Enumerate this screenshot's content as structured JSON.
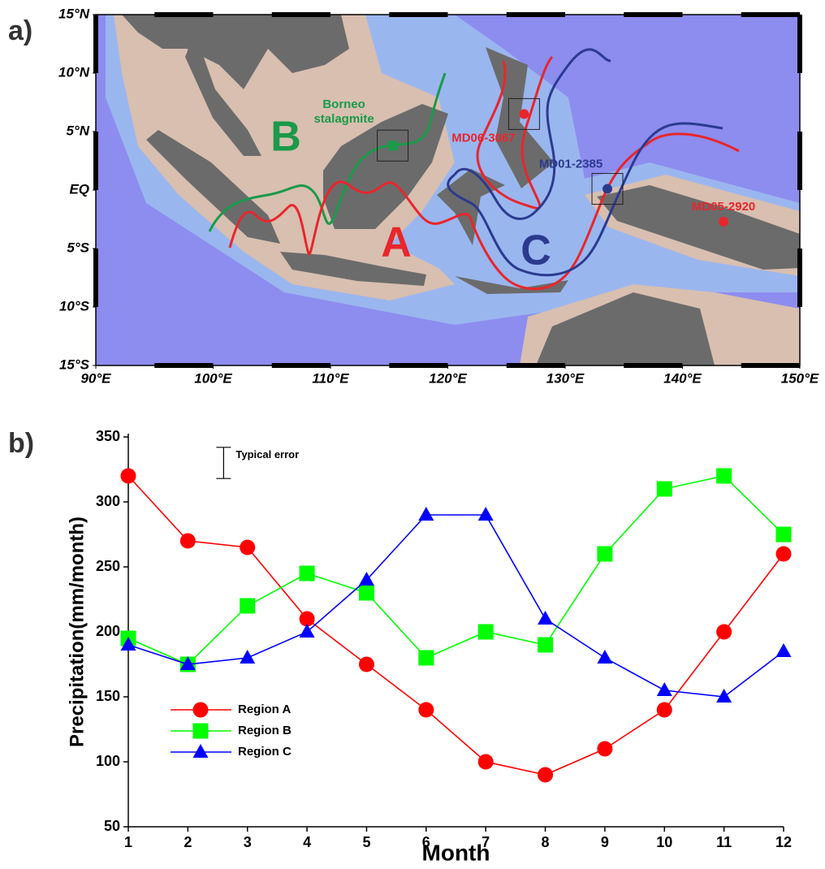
{
  "chart_data": [
    {
      "type": "map",
      "panel_label": "a)",
      "xlim": [
        90,
        150
      ],
      "xticks": [
        {
          "value": 90,
          "label": "90°E"
        },
        {
          "value": 100,
          "label": "100°E"
        },
        {
          "value": 110,
          "label": "110°E"
        },
        {
          "value": 120,
          "label": "120°E"
        },
        {
          "value": 130,
          "label": "130°E"
        },
        {
          "value": 140,
          "label": "140°E"
        },
        {
          "value": 150,
          "label": "150°E"
        }
      ],
      "ylim": [
        -15,
        15
      ],
      "yticks": [
        {
          "value": 15,
          "label": "15°N"
        },
        {
          "value": 10,
          "label": "10°N"
        },
        {
          "value": 5,
          "label": "5°N"
        },
        {
          "value": 0,
          "label": "EQ"
        },
        {
          "value": -5,
          "label": "5°S"
        },
        {
          "value": -10,
          "label": "10°S"
        },
        {
          "value": -15,
          "label": "15°S"
        }
      ],
      "regions": [
        {
          "name": "A",
          "color": "#e8262c"
        },
        {
          "name": "B",
          "color": "#1a9a4a"
        },
        {
          "name": "C",
          "color": "#2b3a8f"
        }
      ],
      "sites": [
        {
          "label": [
            "Borneo",
            "stalagmite"
          ],
          "lon": 115.3,
          "lat": 3.8,
          "color": "#1a9a4a",
          "marker": "square"
        },
        {
          "label": [
            "MD06-3067"
          ],
          "lon": 126.5,
          "lat": 6.5,
          "color": "#e8262c",
          "marker": "circle"
        },
        {
          "label": [
            "MD01-2385"
          ],
          "lon": 133.6,
          "lat": 0.1,
          "color": "#2b3a8f",
          "marker": "circle"
        },
        {
          "label": [
            "MD05-2920"
          ],
          "lon": 143.5,
          "lat": -2.7,
          "color": "#e8262c",
          "marker": "circle"
        }
      ]
    },
    {
      "type": "line",
      "panel_label": "b)",
      "x": [
        1,
        2,
        3,
        4,
        5,
        6,
        7,
        8,
        9,
        10,
        11,
        12
      ],
      "xlim": [
        1,
        12
      ],
      "xticks": [
        1,
        2,
        3,
        4,
        5,
        6,
        7,
        8,
        9,
        10,
        11,
        12
      ],
      "ylim": [
        50,
        350
      ],
      "yticks": [
        50,
        100,
        150,
        200,
        250,
        300,
        350
      ],
      "xlabel": "Month",
      "ylabel": "Precipitation(mm/month)",
      "legend": "lower left",
      "error_bar": {
        "label": "Typical error",
        "x": 2.6,
        "value": 330,
        "error": 12
      },
      "series": [
        {
          "name": "Region A",
          "color": "#ff0000",
          "marker": "circle",
          "values": [
            320,
            270,
            265,
            210,
            175,
            140,
            100,
            90,
            110,
            140,
            200,
            260
          ]
        },
        {
          "name": "Region B",
          "color": "#00ff00",
          "marker": "square",
          "values": [
            195,
            175,
            220,
            245,
            230,
            180,
            200,
            190,
            260,
            310,
            320,
            275
          ]
        },
        {
          "name": "Region C",
          "color": "#0000ff",
          "marker": "triangle",
          "values": [
            190,
            175,
            180,
            200,
            240,
            290,
            290,
            210,
            180,
            155,
            150,
            185
          ]
        }
      ]
    }
  ]
}
